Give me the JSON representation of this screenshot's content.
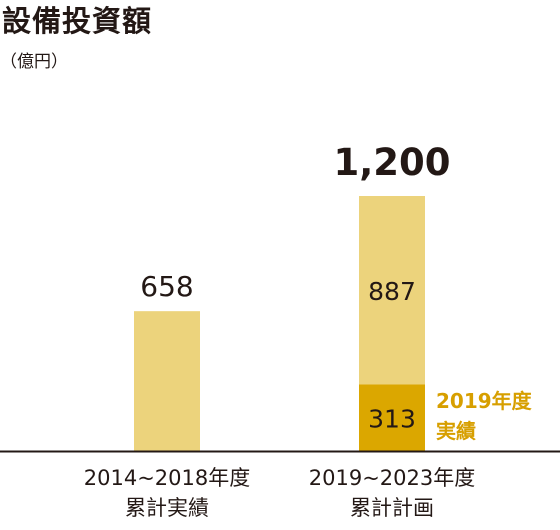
{
  "title": "設備投資額",
  "unit": "（億円）",
  "colors": {
    "light": "#ecd37c",
    "dark": "#dba700",
    "text": "#231815",
    "note": "#d79f00",
    "axis": "#231815"
  },
  "chart_data": {
    "type": "bar",
    "stacked": true,
    "title": "設備投資額",
    "ylabel": "（億円）",
    "categories": [
      [
        "2014~2018年度",
        "累計実績"
      ],
      [
        "2019~2023年度",
        "累計計画"
      ]
    ],
    "series": [
      {
        "name": "2019年度実績",
        "values": [
          null,
          313
        ]
      },
      {
        "values": [
          658,
          887
        ]
      }
    ],
    "totals": [
      658,
      1200
    ],
    "data_labels": {
      "bar": [
        "658",
        "887",
        "313"
      ],
      "total": "1,200"
    },
    "ylim": [
      0,
      1300
    ],
    "grid": false,
    "annotation": [
      "2019年度",
      "実績"
    ]
  }
}
